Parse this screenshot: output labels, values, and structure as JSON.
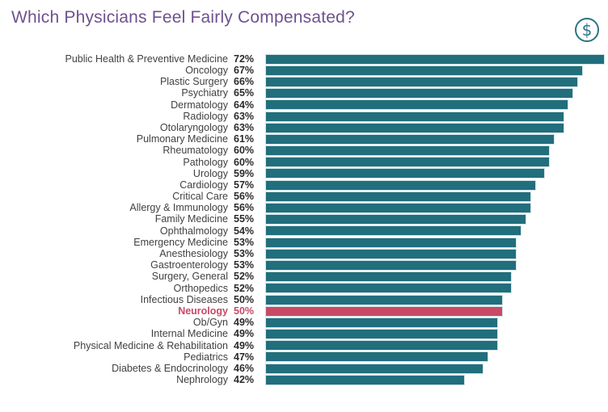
{
  "header": {
    "title": "Which Physicians Feel Fairly Compensated?",
    "title_color": "#6e5190",
    "icon": "dollar-sign-in-circle",
    "icon_color": "#2b7584",
    "icon_glyph": "$"
  },
  "chart_data": {
    "type": "bar",
    "orientation": "horizontal",
    "value_unit": "%",
    "xlim": [
      0,
      72
    ],
    "grid": false,
    "legend": false,
    "bar_color": "#216e7d",
    "highlight_color": "#c74a67",
    "rows": [
      {
        "label": "Public Health & Preventive Medicine",
        "value": 72
      },
      {
        "label": "Oncology",
        "value": 67
      },
      {
        "label": "Plastic Surgery",
        "value": 66
      },
      {
        "label": "Psychiatry",
        "value": 65
      },
      {
        "label": "Dermatology",
        "value": 64
      },
      {
        "label": "Radiology",
        "value": 63
      },
      {
        "label": "Otolaryngology",
        "value": 63
      },
      {
        "label": "Pulmonary Medicine",
        "value": 61
      },
      {
        "label": "Rheumatology",
        "value": 60
      },
      {
        "label": "Pathology",
        "value": 60
      },
      {
        "label": "Urology",
        "value": 59
      },
      {
        "label": "Cardiology",
        "value": 57
      },
      {
        "label": "Critical Care",
        "value": 56
      },
      {
        "label": "Allergy & Immunology",
        "value": 56
      },
      {
        "label": "Family Medicine",
        "value": 55
      },
      {
        "label": "Ophthalmology",
        "value": 54
      },
      {
        "label": "Emergency Medicine",
        "value": 53
      },
      {
        "label": "Anesthesiology",
        "value": 53
      },
      {
        "label": "Gastroenterology",
        "value": 53
      },
      {
        "label": "Surgery, General",
        "value": 52
      },
      {
        "label": "Orthopedics",
        "value": 52
      },
      {
        "label": "Infectious Diseases",
        "value": 50
      },
      {
        "label": "Neurology",
        "value": 50,
        "highlight": true
      },
      {
        "label": "Ob/Gyn",
        "value": 49
      },
      {
        "label": "Internal Medicine",
        "value": 49
      },
      {
        "label": "Physical Medicine & Rehabilitation",
        "value": 49
      },
      {
        "label": "Pediatrics",
        "value": 47
      },
      {
        "label": "Diabetes & Endocrinology",
        "value": 46
      },
      {
        "label": "Nephrology",
        "value": 42
      }
    ]
  }
}
